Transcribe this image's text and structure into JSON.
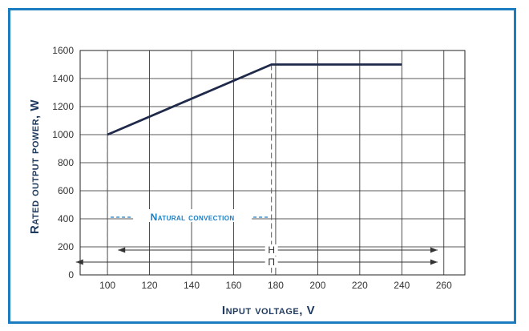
{
  "chart_data": {
    "type": "line",
    "xlabel": "Input voltage, V",
    "ylabel": "Rated output power, W",
    "xlim": [
      87,
      270
    ],
    "ylim": [
      0,
      1600
    ],
    "x_ticks": [
      100,
      120,
      140,
      160,
      180,
      200,
      220,
      240,
      260
    ],
    "y_ticks": [
      0,
      200,
      400,
      600,
      800,
      1000,
      1200,
      1400,
      1600
    ],
    "grid": true,
    "series": [
      {
        "x": [
          100,
          178,
          240
        ],
        "y": [
          1000,
          1500,
          1500
        ],
        "color": "#1f2a4a"
      }
    ],
    "annotations": [
      {
        "text": "Natural convection",
        "color": "#1b7cc0"
      }
    ],
    "ranges": [
      {
        "label": "Н",
        "from": 105,
        "to": 257
      },
      {
        "label": "П",
        "from": 85,
        "to": 257
      }
    ],
    "reference_lines_x": [
      100,
      178
    ]
  }
}
